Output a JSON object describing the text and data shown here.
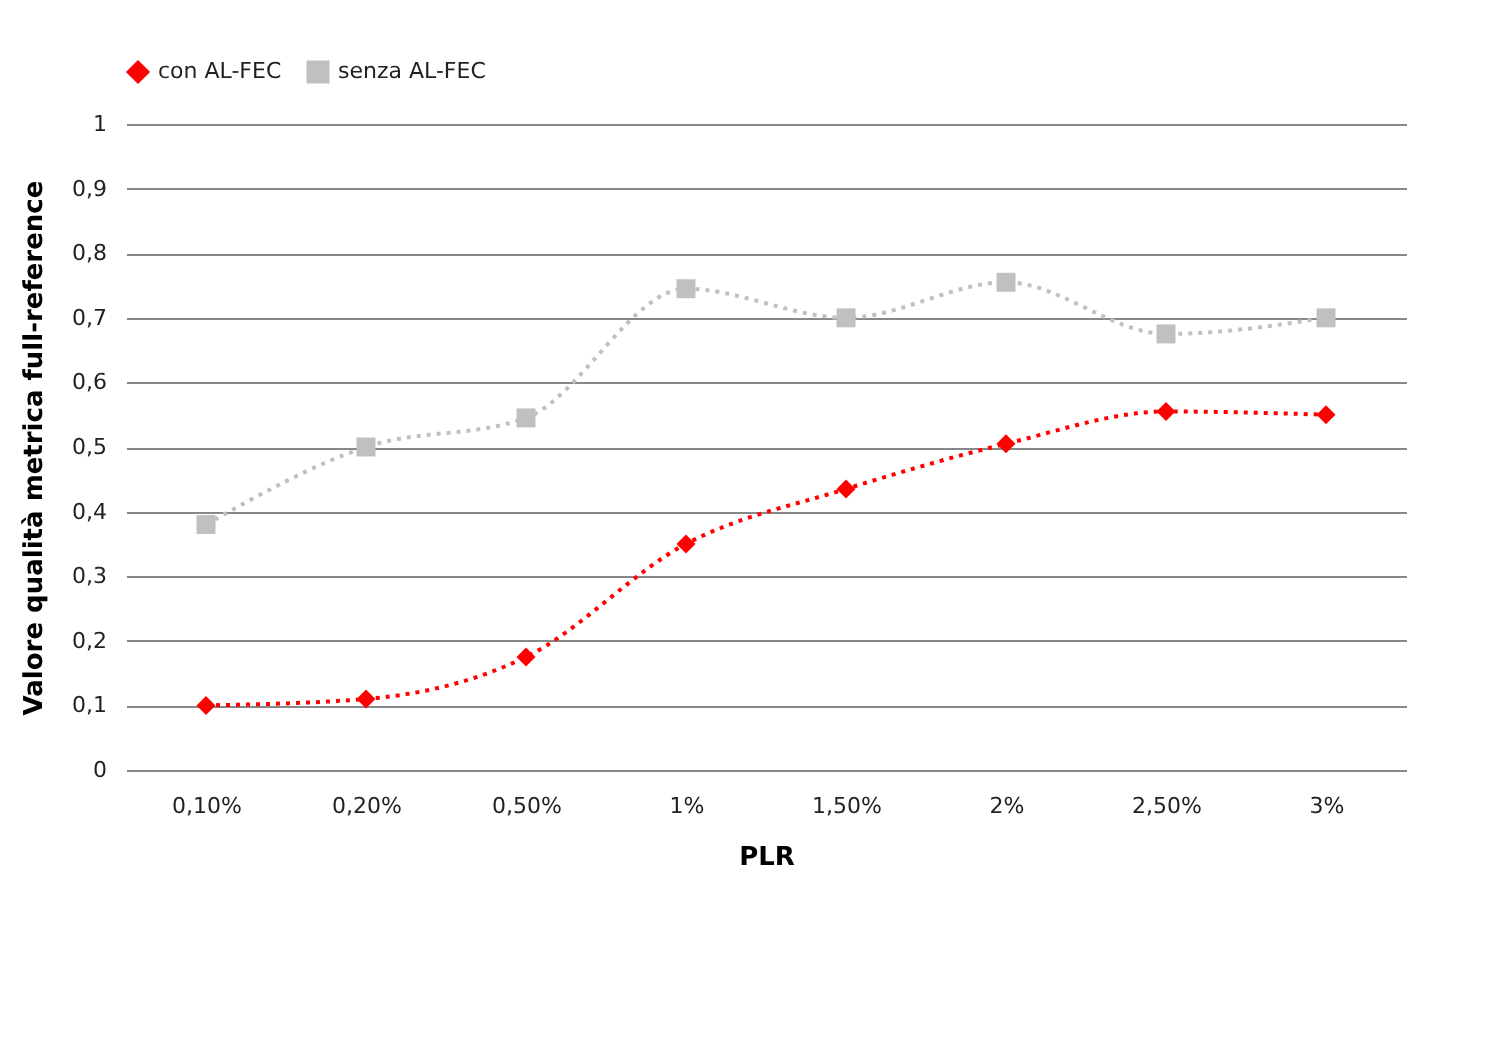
{
  "chart_data": {
    "type": "line",
    "xlabel": "PLR",
    "ylabel": "Valore qualità metrica full-reference",
    "categories": [
      "0,10%",
      "0,20%",
      "0,50%",
      "1%",
      "1,50%",
      "2%",
      "2,50%",
      "3%"
    ],
    "series": [
      {
        "name": "con AL-FEC",
        "color": "#ff0000",
        "marker": "diamond",
        "values": [
          0.1,
          0.11,
          0.175,
          0.35,
          0.435,
          0.505,
          0.555,
          0.55
        ]
      },
      {
        "name": "senza AL-FEC",
        "color": "#c0c0c0",
        "marker": "square",
        "values": [
          0.38,
          0.5,
          0.545,
          0.745,
          0.7,
          0.755,
          0.675,
          0.7
        ]
      }
    ],
    "ylim": [
      0,
      1
    ],
    "yticks": [
      {
        "value": 0,
        "label": "0"
      },
      {
        "value": 0.1,
        "label": "0,1"
      },
      {
        "value": 0.2,
        "label": "0,2"
      },
      {
        "value": 0.3,
        "label": "0,3"
      },
      {
        "value": 0.4,
        "label": "0,4"
      },
      {
        "value": 0.5,
        "label": "0,5"
      },
      {
        "value": 0.6,
        "label": "0,6"
      },
      {
        "value": 0.7,
        "label": "0,7"
      },
      {
        "value": 0.8,
        "label": "0,8"
      },
      {
        "value": 0.9,
        "label": "0,9"
      },
      {
        "value": 1,
        "label": "1"
      }
    ],
    "grid": "y",
    "legend": "top",
    "line_style": "dotted"
  }
}
